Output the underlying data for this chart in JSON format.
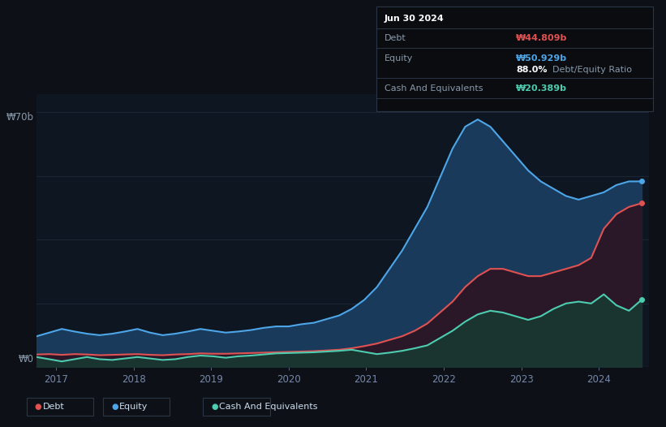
{
  "background_color": "#0d1117",
  "plot_bg_color": "#0e1621",
  "tooltip": {
    "date": "Jun 30 2024",
    "debt_label": "Debt",
    "debt_value": "₩44.809b",
    "equity_label": "Equity",
    "equity_value": "₩50.929b",
    "ratio_value": "88.0%",
    "ratio_label": "Debt/Equity Ratio",
    "cash_label": "Cash And Equivalents",
    "cash_value": "₩20.389b"
  },
  "y_label_top": "₩70b",
  "y_label_bottom": "₩0",
  "x_ticks": [
    "2017",
    "2018",
    "2019",
    "2020",
    "2021",
    "2022",
    "2023",
    "2024"
  ],
  "legend": [
    {
      "label": "Debt",
      "color": "#e05252"
    },
    {
      "label": "Equity",
      "color": "#4da6e8"
    },
    {
      "label": "Cash And Equivalents",
      "color": "#4dccb0"
    }
  ],
  "equity_color": "#4da6e8",
  "debt_color": "#e05252",
  "cash_color": "#4dccb0",
  "equity_fill": "#1a3a5c",
  "grid_color": "#1e2a38",
  "ylim": [
    0,
    75
  ],
  "equity_data": [
    8.5,
    9.5,
    10.5,
    9.8,
    9.2,
    8.8,
    9.2,
    9.8,
    10.5,
    9.5,
    8.8,
    9.2,
    9.8,
    10.5,
    10.0,
    9.5,
    9.8,
    10.2,
    10.8,
    11.2,
    11.2,
    11.8,
    12.2,
    13.2,
    14.2,
    16.0,
    18.5,
    22.0,
    27.0,
    32.0,
    38.0,
    44.0,
    52.0,
    60.0,
    66.0,
    68.0,
    66.0,
    62.0,
    58.0,
    54.0,
    51.0,
    49.0,
    47.0,
    46.0,
    47.0,
    48.0,
    50.0,
    51.0,
    51.0
  ],
  "debt_data": [
    3.5,
    3.6,
    3.4,
    3.6,
    3.5,
    3.3,
    3.4,
    3.5,
    3.6,
    3.4,
    3.3,
    3.5,
    3.6,
    3.8,
    3.7,
    3.7,
    3.8,
    3.9,
    4.0,
    4.1,
    4.2,
    4.3,
    4.4,
    4.6,
    4.8,
    5.2,
    5.8,
    6.5,
    7.5,
    8.5,
    10.0,
    12.0,
    15.0,
    18.0,
    22.0,
    25.0,
    27.0,
    27.0,
    26.0,
    25.0,
    25.0,
    26.0,
    27.0,
    28.0,
    30.0,
    38.0,
    42.0,
    44.0,
    45.0
  ],
  "cash_data": [
    2.8,
    2.2,
    1.6,
    2.2,
    2.8,
    2.2,
    2.0,
    2.4,
    2.8,
    2.4,
    2.0,
    2.2,
    2.8,
    3.2,
    3.0,
    2.6,
    3.0,
    3.2,
    3.5,
    3.8,
    3.9,
    4.0,
    4.1,
    4.3,
    4.5,
    4.8,
    4.2,
    3.6,
    4.0,
    4.5,
    5.2,
    6.0,
    8.0,
    10.0,
    12.5,
    14.5,
    15.5,
    15.0,
    14.0,
    13.0,
    14.0,
    16.0,
    17.5,
    18.0,
    17.5,
    20.0,
    17.0,
    15.5,
    18.5
  ]
}
